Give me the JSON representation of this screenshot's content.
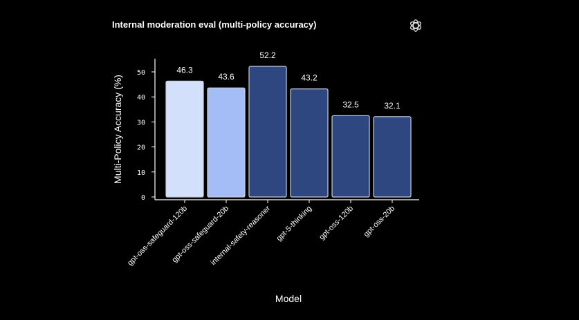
{
  "header": {
    "title": "Internal moderation eval (multi-policy accuracy)",
    "logo_icon": "openai-logo-icon"
  },
  "chart_data": {
    "type": "bar",
    "title": "Internal moderation eval (multi-policy accuracy)",
    "xlabel": "Model",
    "ylabel": "Multi-Policy Accuracy (%)",
    "categories": [
      "gpt-oss-safeguard-120b",
      "gpt-oss-safeguard-20b",
      "internal-safety-reasoner",
      "gpt-5-thinking",
      "gpt-oss-120b",
      "gpt-oss-20b"
    ],
    "values": [
      46.3,
      43.6,
      52.2,
      43.2,
      32.5,
      32.1
    ],
    "value_labels": [
      "46.3",
      "43.6",
      "52.2",
      "43.2",
      "32.5",
      "32.1"
    ],
    "colors": [
      "#d2e0fb",
      "#a5bdf7",
      "#2e4780",
      "#2e4780",
      "#2e4780",
      "#2e4780"
    ],
    "ylim": [
      0,
      55
    ],
    "yticks": [
      0,
      10,
      20,
      30,
      40,
      50
    ],
    "ytick_labels": [
      "0",
      "10",
      "20",
      "30",
      "40",
      "50"
    ],
    "grid": false,
    "legend": "none"
  }
}
